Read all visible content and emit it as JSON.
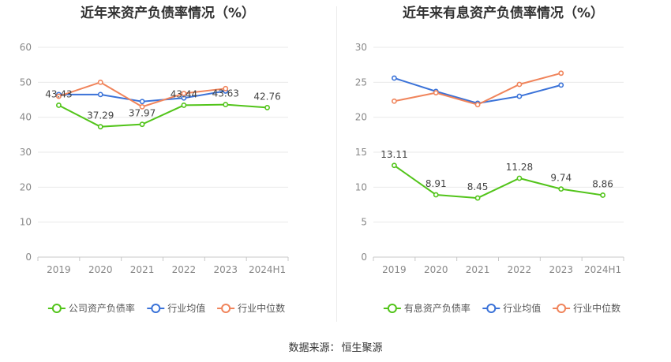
{
  "source": {
    "label": "数据来源：",
    "name": "恒生聚源"
  },
  "chart_data": [
    {
      "type": "line",
      "title": "近年来资产负债率情况（%）",
      "categories": [
        "2019",
        "2020",
        "2021",
        "2022",
        "2023",
        "2024H1"
      ],
      "ylim": [
        0,
        60
      ],
      "yticks": [
        0,
        10,
        20,
        30,
        40,
        50,
        60
      ],
      "grid": true,
      "legend_position": "bottom",
      "series": [
        {
          "name": "公司资产负债率",
          "color": "#52c41a",
          "values": [
            43.43,
            37.29,
            37.97,
            43.44,
            43.63,
            42.76
          ],
          "show_labels": true
        },
        {
          "name": "行业均值",
          "color": "#3a72d8",
          "values": [
            46.5,
            46.5,
            44.5,
            45.5,
            47.5,
            null
          ],
          "show_labels": false
        },
        {
          "name": "行业中位数",
          "color": "#f0845b",
          "values": [
            46.0,
            50.0,
            43.0,
            46.8,
            48.2,
            null
          ],
          "show_labels": false
        }
      ]
    },
    {
      "type": "line",
      "title": "近年来有息资产负债率情况（%）",
      "categories": [
        "2019",
        "2020",
        "2021",
        "2022",
        "2023",
        "2024H1"
      ],
      "ylim": [
        0,
        30
      ],
      "yticks": [
        0,
        5,
        10,
        15,
        20,
        25,
        30
      ],
      "grid": true,
      "legend_position": "bottom",
      "series": [
        {
          "name": "有息资产负债率",
          "color": "#52c41a",
          "values": [
            13.11,
            8.91,
            8.45,
            11.28,
            9.74,
            8.86
          ],
          "show_labels": true
        },
        {
          "name": "行业均值",
          "color": "#3a72d8",
          "values": [
            25.6,
            23.7,
            22.0,
            23.0,
            24.6,
            null
          ],
          "show_labels": false
        },
        {
          "name": "行业中位数",
          "color": "#f0845b",
          "values": [
            22.3,
            23.5,
            21.8,
            24.7,
            26.3,
            null
          ],
          "show_labels": false
        }
      ]
    }
  ]
}
